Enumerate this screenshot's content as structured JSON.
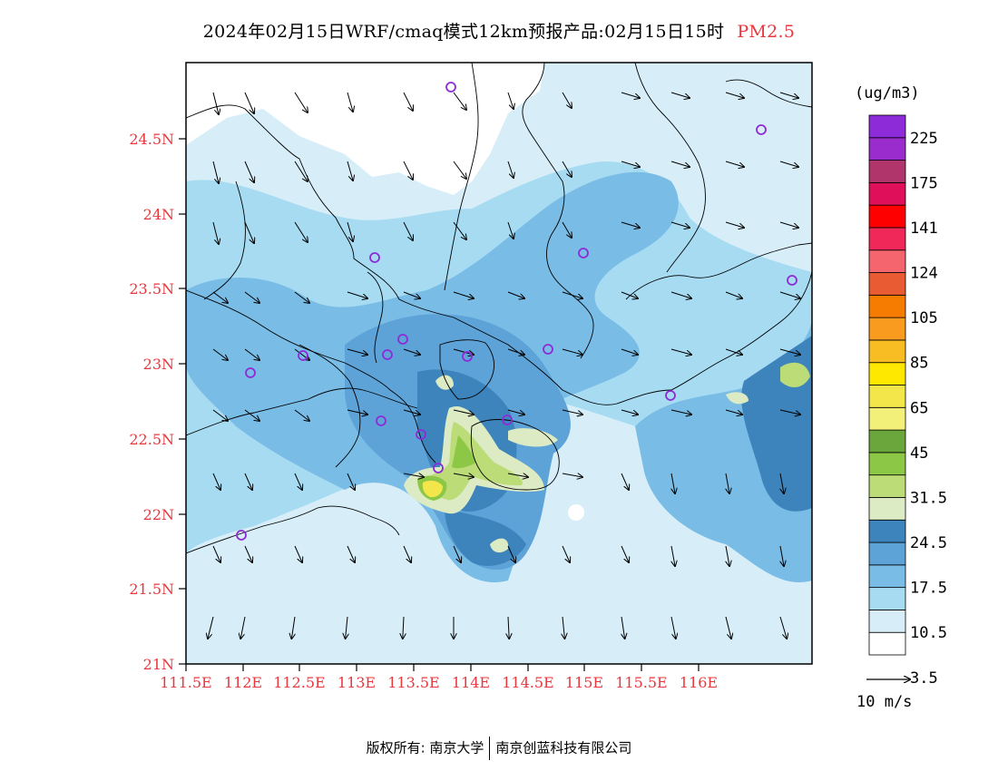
{
  "title": {
    "main": "2024年02月15日WRF/cmaq模式12km预报产品:02月15日15时",
    "species": "PM2.5"
  },
  "colors": {
    "axis_label": "#e8383d",
    "coastline": "#000000"
  },
  "map": {
    "lon_ticks": [
      "111.5E",
      "112E",
      "112.5E",
      "113E",
      "113.5E",
      "114E",
      "114.5E",
      "115E",
      "115.5E",
      "116E"
    ],
    "lat_ticks": [
      "21N",
      "21.5N",
      "22N",
      "22.5N",
      "23N",
      "23.5N",
      "24N",
      "24.5N"
    ],
    "lon_range": [
      111.5,
      117.0
    ],
    "lat_range": [
      21.0,
      24.95
    ]
  },
  "colorbar": {
    "unit": "(ug/m3)",
    "labels": [
      "225",
      "175",
      "141",
      "124",
      "105",
      "85",
      "65",
      "45",
      "31.5",
      "24.5",
      "17.5",
      "10.5",
      "3.5"
    ],
    "colors": [
      "#ffffff",
      "#d7eef9",
      "#a6dbf2",
      "#79bce6",
      "#5ea3d8",
      "#3d84bd",
      "#dcebc4",
      "#bcdc78",
      "#8dc746",
      "#6aa63c",
      "#f3f07a",
      "#f2e64a",
      "#ffe800",
      "#f8bd22",
      "#f89b1e",
      "#f57c00",
      "#e95b32",
      "#f5656e",
      "#f0285a",
      "#ff0000",
      "#e00f5a",
      "#b0356a",
      "#9a2bcd",
      "#8e2bd8"
    ]
  },
  "wind_reference": {
    "label": "10 m/s"
  },
  "footer": {
    "left": "版权所有: 南京大学",
    "right": "南京创蓝科技有限公司"
  }
}
